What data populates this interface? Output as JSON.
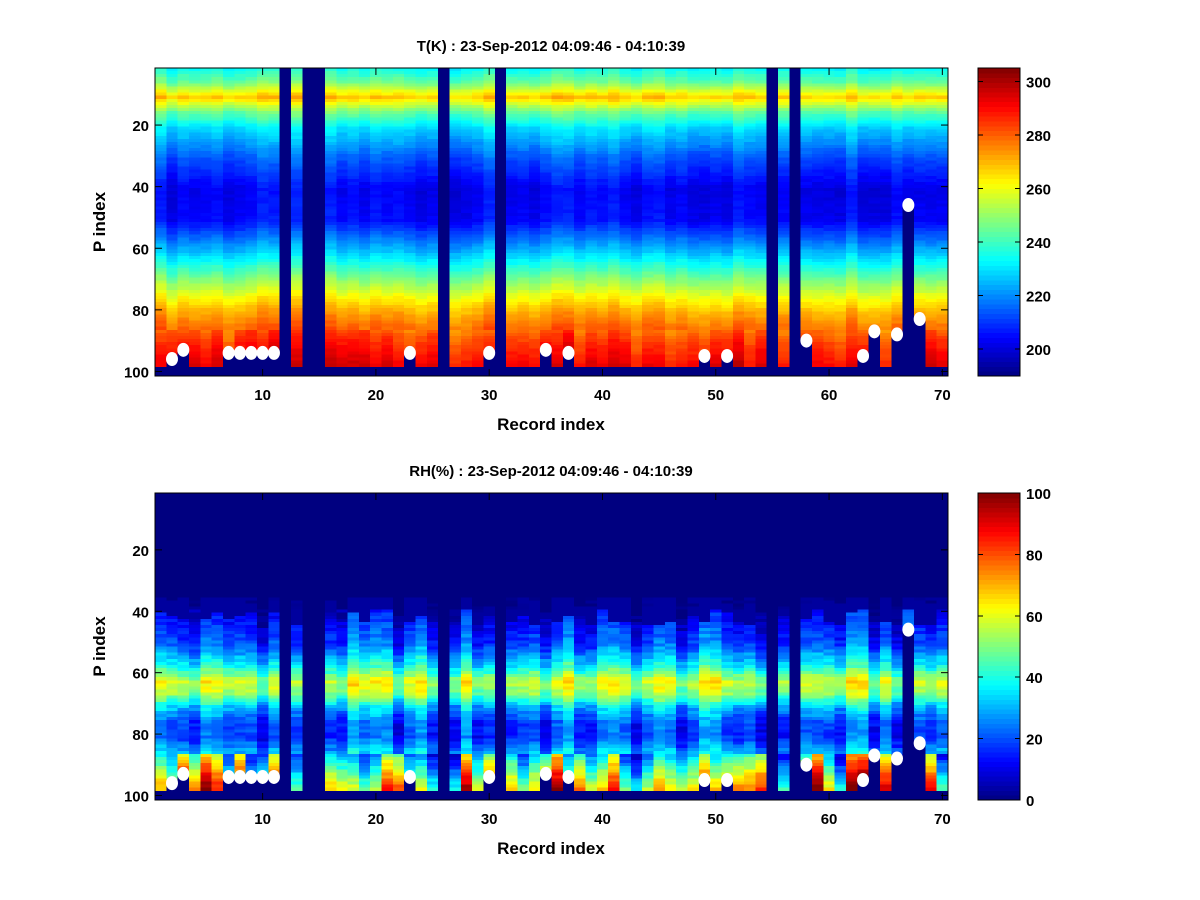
{
  "chart_data": [
    {
      "type": "heatmap",
      "title": "T(K) : 23-Sep-2012 04:09:46 - 04:10:39",
      "xlabel": "Record index",
      "ylabel": "P index",
      "xlim": [
        0.5,
        70.5
      ],
      "ylim": [
        0.5,
        100.5
      ],
      "y_reversed": true,
      "xticks": [
        10,
        20,
        30,
        40,
        50,
        60,
        70
      ],
      "yticks": [
        20,
        40,
        60,
        80,
        100
      ],
      "colorbar": {
        "range": [
          190,
          305
        ],
        "ticks": [
          200,
          220,
          240,
          260,
          280,
          300
        ]
      },
      "colormap": "jet",
      "missing_color": "#000080",
      "mean_profile": {
        "p": [
          1,
          5,
          10,
          15,
          20,
          30,
          40,
          50,
          60,
          70,
          75,
          80,
          90,
          97
        ],
        "value": [
          235,
          245,
          268,
          245,
          230,
          214,
          203,
          205,
          226,
          250,
          262,
          272,
          286,
          293
        ]
      },
      "missing_records": [
        12,
        14,
        15,
        26,
        31,
        55,
        57
      ],
      "ground_start_p": 98
    },
    {
      "type": "heatmap",
      "title": "RH(%) : 23-Sep-2012 04:09:46 - 04:10:39",
      "xlabel": "Record index",
      "ylabel": "P index",
      "xlim": [
        0.5,
        70.5
      ],
      "ylim": [
        0.5,
        100.5
      ],
      "y_reversed": true,
      "xticks": [
        10,
        20,
        30,
        40,
        50,
        60,
        70
      ],
      "yticks": [
        20,
        40,
        60,
        80,
        100
      ],
      "colorbar": {
        "range": [
          0,
          100
        ],
        "ticks": [
          0,
          20,
          40,
          60,
          80,
          100
        ]
      },
      "colormap": "jet",
      "missing_color": "#000080",
      "mean_profile": {
        "p": [
          1,
          34,
          40,
          50,
          57,
          62,
          66,
          70,
          75,
          80,
          85,
          90,
          95,
          97
        ],
        "value": [
          0,
          0,
          10,
          20,
          38,
          58,
          52,
          32,
          20,
          18,
          30,
          45,
          60,
          65
        ]
      },
      "missing_records": [
        12,
        14,
        15,
        26,
        31,
        55,
        57
      ],
      "ground_start_p": 98
    }
  ],
  "surface_markers": {
    "color": "#ffffff",
    "points": [
      [
        2,
        95
      ],
      [
        3,
        92
      ],
      [
        7,
        93
      ],
      [
        8,
        93
      ],
      [
        9,
        93
      ],
      [
        10,
        93
      ],
      [
        11,
        93
      ],
      [
        23,
        93
      ],
      [
        30,
        93
      ],
      [
        35,
        92
      ],
      [
        37,
        93
      ],
      [
        49,
        94
      ],
      [
        51,
        94
      ],
      [
        58,
        89
      ],
      [
        63,
        94
      ],
      [
        64,
        86
      ],
      [
        66,
        87
      ],
      [
        67,
        45
      ],
      [
        68,
        82
      ]
    ]
  }
}
